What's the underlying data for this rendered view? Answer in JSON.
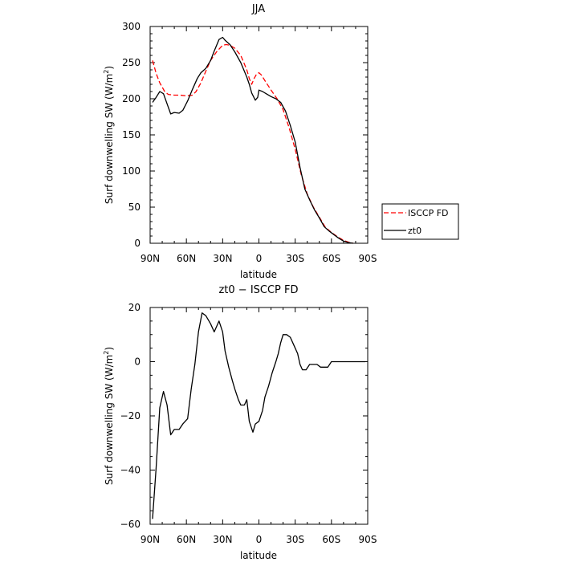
{
  "chart_data": [
    {
      "type": "line",
      "title": "JJA",
      "xlabel": "latitude",
      "ylabel": "Surf downwelling SW (W/m²)",
      "xlim": [
        90,
        -90
      ],
      "ylim": [
        0,
        300
      ],
      "x_tick_labels": [
        "90N",
        "60N",
        "30N",
        "0",
        "30S",
        "60S",
        "90S"
      ],
      "x_tick_values": [
        90,
        60,
        30,
        0,
        -30,
        -60,
        -90
      ],
      "y_ticks": [
        0,
        50,
        100,
        150,
        200,
        250,
        300
      ],
      "legend_position": "outside-right",
      "series": [
        {
          "name": "ISCCP FD",
          "color": "#ff0000",
          "dash": true,
          "points": [
            [
              88,
              253
            ],
            [
              85,
              235
            ],
            [
              82,
              222
            ],
            [
              78,
              210
            ],
            [
              75,
              206
            ],
            [
              70,
              205
            ],
            [
              65,
              205
            ],
            [
              60,
              204
            ],
            [
              55,
              205
            ],
            [
              52,
              210
            ],
            [
              48,
              222
            ],
            [
              44,
              238
            ],
            [
              40,
              253
            ],
            [
              35,
              265
            ],
            [
              30,
              274
            ],
            [
              27,
              275
            ],
            [
              24,
              274
            ],
            [
              20,
              270
            ],
            [
              15,
              260
            ],
            [
              10,
              240
            ],
            [
              8,
              228
            ],
            [
              6,
              220
            ],
            [
              4,
              228
            ],
            [
              2,
              234
            ],
            [
              0,
              236
            ],
            [
              -2,
              233
            ],
            [
              -5,
              225
            ],
            [
              -10,
              212
            ],
            [
              -15,
              200
            ],
            [
              -20,
              185
            ],
            [
              -25,
              160
            ],
            [
              -30,
              130
            ],
            [
              -35,
              95
            ],
            [
              -40,
              68
            ],
            [
              -45,
              50
            ],
            [
              -50,
              36
            ],
            [
              -55,
              22
            ],
            [
              -60,
              15
            ],
            [
              -65,
              9
            ],
            [
              -70,
              4
            ],
            [
              -75,
              1
            ],
            [
              -78,
              0
            ]
          ]
        },
        {
          "name": "zt0",
          "color": "#000000",
          "dash": false,
          "points": [
            [
              88,
              195
            ],
            [
              85,
              202
            ],
            [
              82,
              210
            ],
            [
              79,
              207
            ],
            [
              76,
              193
            ],
            [
              73,
              179
            ],
            [
              70,
              181
            ],
            [
              66,
              180
            ],
            [
              63,
              184
            ],
            [
              59,
              197
            ],
            [
              55,
              213
            ],
            [
              51,
              228
            ],
            [
              48,
              236
            ],
            [
              44,
              242
            ],
            [
              40,
              253
            ],
            [
              37,
              266
            ],
            [
              33,
              282
            ],
            [
              30,
              285
            ],
            [
              28,
              281
            ],
            [
              24,
              275
            ],
            [
              20,
              265
            ],
            [
              15,
              250
            ],
            [
              10,
              230
            ],
            [
              8,
              220
            ],
            [
              6,
              208
            ],
            [
              3,
              198
            ],
            [
              1,
              202
            ],
            [
              0,
              212
            ],
            [
              -3,
              210
            ],
            [
              -6,
              207
            ],
            [
              -10,
              203
            ],
            [
              -14,
              200
            ],
            [
              -18,
              195
            ],
            [
              -22,
              183
            ],
            [
              -26,
              163
            ],
            [
              -30,
              140
            ],
            [
              -34,
              105
            ],
            [
              -38,
              75
            ],
            [
              -42,
              60
            ],
            [
              -46,
              46
            ],
            [
              -50,
              35
            ],
            [
              -54,
              23
            ],
            [
              -58,
              17
            ],
            [
              -62,
              12
            ],
            [
              -66,
              7
            ],
            [
              -70,
              3
            ],
            [
              -74,
              1
            ],
            [
              -78,
              0
            ]
          ]
        }
      ]
    },
    {
      "type": "line",
      "title": "zt0 − ISCCP FD",
      "xlabel": "latitude",
      "ylabel": "Surf downwelling SW (W/m²)",
      "xlim": [
        90,
        -90
      ],
      "ylim": [
        -60,
        20
      ],
      "x_tick_labels": [
        "90N",
        "60N",
        "30N",
        "0",
        "30S",
        "60S",
        "90S"
      ],
      "x_tick_values": [
        90,
        60,
        30,
        0,
        -30,
        -60,
        -90
      ],
      "y_tick_labels": [
        "−60",
        "−40",
        "−20",
        "0",
        "20"
      ],
      "y_ticks": [
        -60,
        -40,
        -20,
        0,
        20
      ],
      "series": [
        {
          "color": "#000000",
          "dash": false,
          "points": [
            [
              88,
              -58
            ],
            [
              85,
              -39
            ],
            [
              82,
              -17
            ],
            [
              79,
              -11
            ],
            [
              76,
              -16
            ],
            [
              73,
              -27
            ],
            [
              70,
              -25
            ],
            [
              66,
              -25
            ],
            [
              63,
              -23
            ],
            [
              59,
              -21
            ],
            [
              56,
              -10
            ],
            [
              53,
              -1
            ],
            [
              50,
              11
            ],
            [
              47,
              18
            ],
            [
              44,
              17
            ],
            [
              40,
              14
            ],
            [
              37,
              11
            ],
            [
              35,
              13
            ],
            [
              33,
              15
            ],
            [
              30,
              11
            ],
            [
              28,
              4
            ],
            [
              25,
              -2
            ],
            [
              22,
              -7
            ],
            [
              20,
              -10
            ],
            [
              17,
              -14
            ],
            [
              15,
              -16
            ],
            [
              12,
              -16
            ],
            [
              10,
              -14
            ],
            [
              8,
              -22
            ],
            [
              5,
              -26
            ],
            [
              3,
              -23
            ],
            [
              0,
              -22
            ],
            [
              -3,
              -18
            ],
            [
              -5,
              -13
            ],
            [
              -8,
              -9
            ],
            [
              -11,
              -4
            ],
            [
              -14,
              0
            ],
            [
              -16,
              3
            ],
            [
              -18,
              7
            ],
            [
              -20,
              10
            ],
            [
              -23,
              10
            ],
            [
              -26,
              9
            ],
            [
              -29,
              6
            ],
            [
              -32,
              3
            ],
            [
              -34,
              -1
            ],
            [
              -36,
              -3
            ],
            [
              -39,
              -3
            ],
            [
              -42,
              -1
            ],
            [
              -45,
              -1
            ],
            [
              -48,
              -1
            ],
            [
              -51,
              -2
            ],
            [
              -54,
              -2
            ],
            [
              -57,
              -2
            ],
            [
              -60,
              0
            ],
            [
              -63,
              0
            ],
            [
              -66,
              0
            ],
            [
              -70,
              0
            ],
            [
              -75,
              0
            ],
            [
              -80,
              0
            ],
            [
              -85,
              0
            ],
            [
              -88,
              0
            ]
          ]
        }
      ]
    }
  ]
}
